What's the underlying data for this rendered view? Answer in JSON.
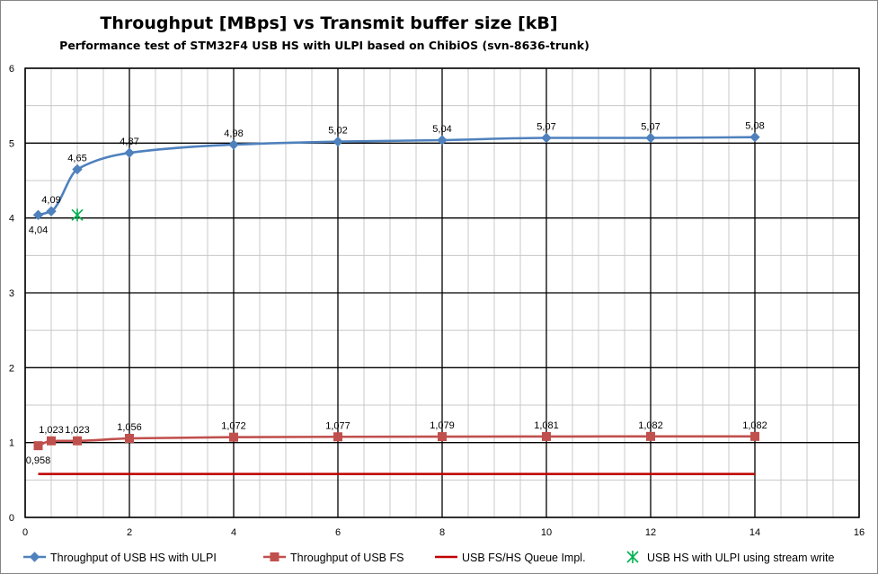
{
  "chart_data": {
    "type": "line",
    "title": "Throughput [MBps] vs Transmit buffer size [kB]",
    "subtitle": "Performance test of STM32F4 USB HS with ULPI based on ChibiOS (svn-8636-trunk)",
    "xlabel": "",
    "ylabel": "",
    "xlim": [
      0,
      16
    ],
    "ylim": [
      0,
      6
    ],
    "x_ticks": [
      0,
      2,
      4,
      6,
      8,
      10,
      12,
      14,
      16
    ],
    "y_ticks": [
      0,
      1,
      2,
      3,
      4,
      5,
      6
    ],
    "minor_grid_x_step": 0.5,
    "minor_grid_y_step": 0.5,
    "grid": true,
    "legend_position": "bottom",
    "series": [
      {
        "name": "Throughput of USB HS with ULPI",
        "color": "#4f81bd",
        "marker": "diamond",
        "smooth": true,
        "x": [
          0.25,
          0.5,
          1,
          2,
          4,
          6,
          8,
          10,
          12,
          14
        ],
        "y": [
          4.04,
          4.09,
          4.65,
          4.87,
          4.98,
          5.02,
          5.04,
          5.07,
          5.07,
          5.08
        ],
        "labels": [
          "4,04",
          "4,09",
          "4,65",
          "4,87",
          "4,98",
          "5,02",
          "5,04",
          "5,07",
          "5,07",
          "5,08"
        ],
        "label_side": [
          "below",
          "above",
          "above",
          "above",
          "above",
          "above",
          "above",
          "above",
          "above",
          "above"
        ]
      },
      {
        "name": "Throughput of USB FS",
        "color": "#c0504d",
        "marker": "square",
        "smooth": true,
        "x": [
          0.25,
          0.5,
          1,
          2,
          4,
          6,
          8,
          10,
          12,
          14
        ],
        "y": [
          0.958,
          1.023,
          1.023,
          1.056,
          1.072,
          1.077,
          1.079,
          1.081,
          1.082,
          1.082
        ],
        "labels": [
          "0,958",
          "1,023",
          "1,023",
          "1,056",
          "1,072",
          "1,077",
          "1,079",
          "1,081",
          "1,082",
          "1,082"
        ],
        "label_side": [
          "below",
          "above",
          "above",
          "above",
          "above",
          "above",
          "above",
          "above",
          "above",
          "above"
        ]
      },
      {
        "name": "USB FS/HS Queue Impl.",
        "color": "#c00000",
        "marker": "none",
        "smooth": false,
        "x": [
          0.25,
          14
        ],
        "y": [
          0.58,
          0.58
        ]
      },
      {
        "name": "USB HS with ULPI using stream write",
        "color": "#00b050",
        "marker": "star",
        "smooth": false,
        "x": [
          1
        ],
        "y": [
          4.04
        ]
      }
    ]
  }
}
